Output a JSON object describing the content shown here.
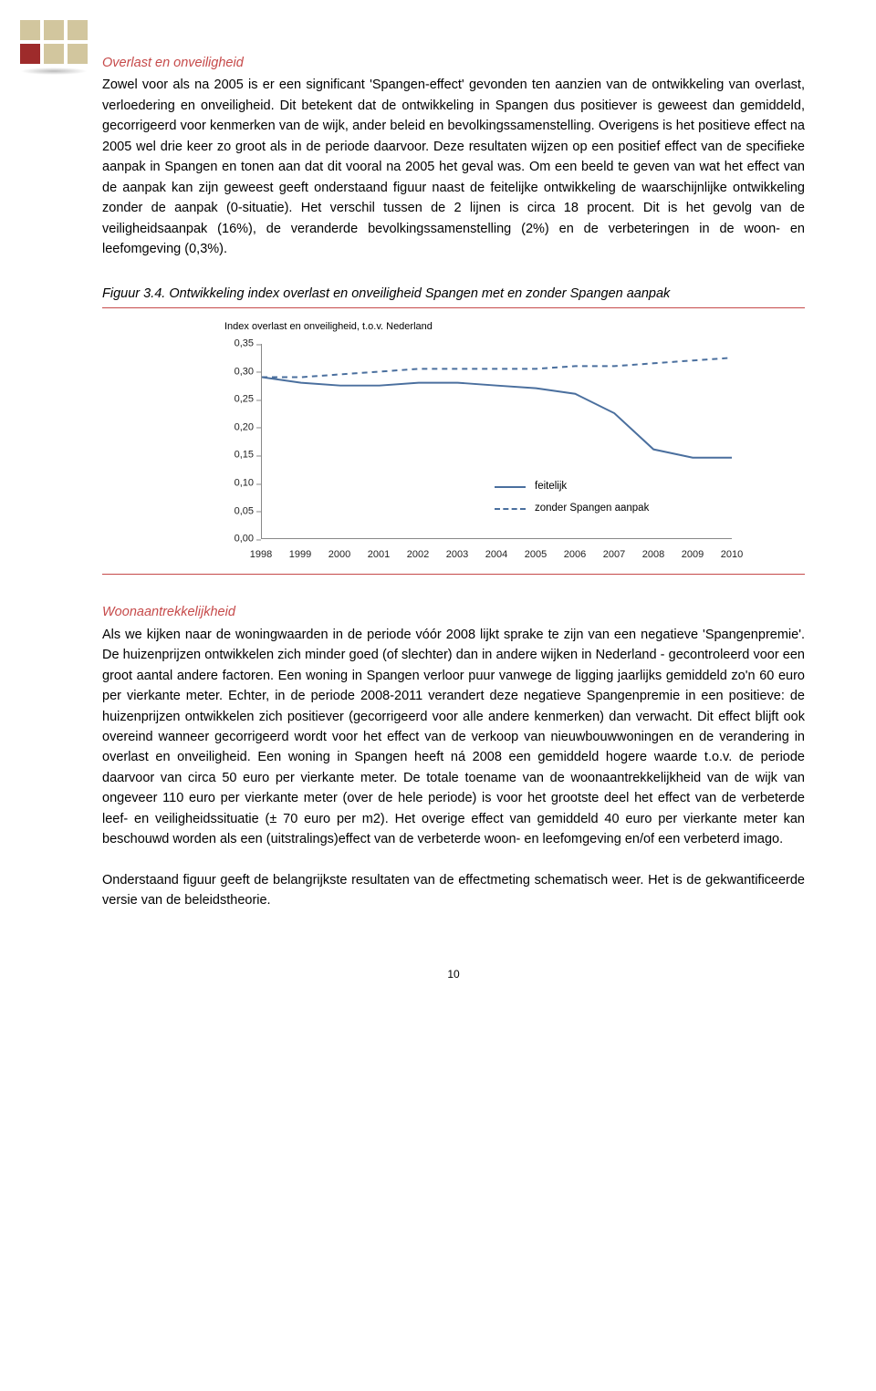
{
  "logo": {
    "colors": [
      "#d2c69e",
      "#d2c69e",
      "#d2c69e",
      "#9e2b2b",
      "#d2c69e",
      "#d2c69e"
    ]
  },
  "section1": {
    "title_color": "#c64a4a",
    "title": "Overlast en onveiligheid",
    "body": "Zowel voor als na 2005 is er een significant 'Spangen-effect' gevonden ten aanzien van de ontwikkeling van overlast, verloedering en onveiligheid. Dit betekent dat de ontwikkeling in Spangen dus positiever is geweest dan gemiddeld, gecorrigeerd voor kenmerken van de wijk, ander beleid en bevolkingssamenstelling. Overigens is het positieve effect na 2005 wel drie keer zo groot als in de periode daarvoor. Deze resultaten wijzen op een positief effect van de specifieke aanpak in Spangen en tonen aan dat dit vooral na 2005 het geval was. Om een beeld te geven van wat het effect van de aanpak kan zijn geweest geeft onderstaand figuur naast de feitelijke ontwikkeling de waarschijnlijke ontwikkeling zonder de aanpak (0-situatie). Het verschil tussen de 2 lijnen is circa 18 procent. Dit is het gevolg van de veiligheidsaanpak (16%), de veranderde bevolkingssamenstelling (2%) en de verbeteringen in de woon- en leefomgeving (0,3%)."
  },
  "figure": {
    "caption": "Figuur 3.4. Ontwikkeling index overlast en onveiligheid Spangen met en zonder Spangen aanpak",
    "underline_color": "#c64a4a",
    "chart": {
      "type": "line",
      "title": "Index overlast en onveiligheid, t.o.v. Nederland",
      "xlim": [
        1998,
        2010
      ],
      "ylim": [
        0.0,
        0.35
      ],
      "ytick_step": 0.05,
      "yticks": [
        "0,00",
        "0,05",
        "0,10",
        "0,15",
        "0,20",
        "0,25",
        "0,30",
        "0,35"
      ],
      "xticks": [
        "1998",
        "1999",
        "2000",
        "2001",
        "2002",
        "2003",
        "2004",
        "2005",
        "2006",
        "2007",
        "2008",
        "2009",
        "2010"
      ],
      "axis_color": "#888888",
      "tick_font_size": 11,
      "series": [
        {
          "name": "feitelijk",
          "color": "#4a6f9e",
          "dash": "solid",
          "width": 2,
          "values": [
            0.29,
            0.28,
            0.275,
            0.275,
            0.28,
            0.28,
            0.275,
            0.27,
            0.26,
            0.225,
            0.16,
            0.145,
            0.145
          ]
        },
        {
          "name": "zonder Spangen aanpak",
          "color": "#4a6f9e",
          "dash": "6,5",
          "width": 2,
          "values": [
            0.29,
            0.29,
            0.295,
            0.3,
            0.305,
            0.305,
            0.305,
            0.305,
            0.31,
            0.31,
            0.315,
            0.32,
            0.325
          ]
        }
      ],
      "legend": {
        "items": [
          "feitelijk",
          "zonder Spangen aanpak"
        ]
      }
    }
  },
  "section2": {
    "title_color": "#c64a4a",
    "title": "Woonaantrekkelijkheid",
    "body": "Als we kijken naar de woningwaarden in de periode vóór 2008 lijkt sprake te zijn van een negatieve 'Spangenpremie'. De huizenprijzen ontwikkelen zich minder goed (of slechter) dan in andere wijken in Nederland - gecontroleerd voor een groot aantal andere factoren. Een woning in Spangen verloor puur vanwege de ligging jaarlijks gemiddeld zo'n 60 euro per vierkante meter. Echter, in de periode 2008-2011 verandert deze negatieve Spangenpremie in een positieve: de huizenprijzen ontwikkelen zich positiever (gecorrigeerd voor alle andere kenmerken) dan verwacht. Dit effect blijft ook overeind wanneer gecorrigeerd wordt voor het effect van de verkoop van nieuwbouwwoningen en de verandering in overlast en onveiligheid. Een woning in Spangen heeft ná 2008 een gemiddeld hogere waarde t.o.v. de periode daarvoor van circa 50 euro per vierkante meter. De totale toename van de woonaantrekkelijkheid van de wijk van ongeveer 110 euro per vierkante meter (over de hele periode) is voor het grootste deel het effect van de verbeterde leef- en veiligheidssituatie (± 70 euro per m2). Het overige effect van gemiddeld 40 euro per vierkante meter kan beschouwd worden als een (uitstralings)effect van de verbeterde woon- en leefomgeving en/of een verbeterd imago."
  },
  "closing_paragraph": "Onderstaand figuur geeft de belangrijkste resultaten van de effectmeting schematisch weer. Het is de gekwantificeerde versie van de beleidstheorie.",
  "page_number": "10"
}
